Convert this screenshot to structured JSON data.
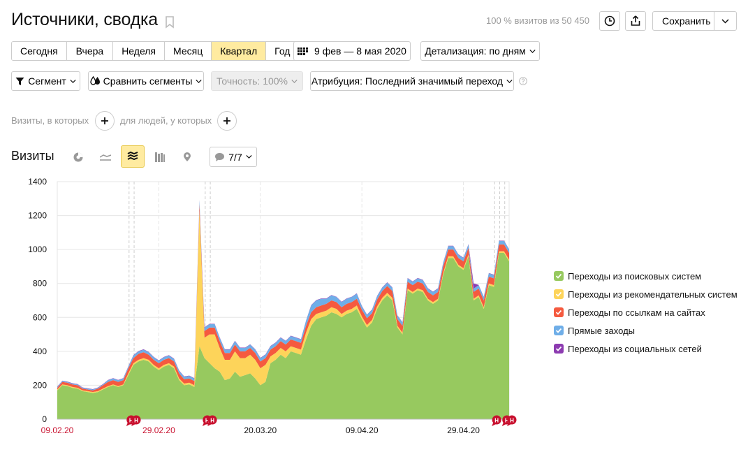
{
  "header": {
    "title": "Источники, сводка",
    "visits_info": "100 % визитов из 50 450",
    "save_label": "Сохранить"
  },
  "period": {
    "items": [
      "Сегодня",
      "Вчера",
      "Неделя",
      "Месяц",
      "Квартал",
      "Год"
    ],
    "active_index": 4,
    "date_range": "9 фев — 8 мая 2020",
    "detail_label": "Детализация: по дням"
  },
  "filters": {
    "segment_label": "Сегмент",
    "compare_label": "Сравнить сегменты",
    "accuracy_label": "Точность: 100%",
    "attribution_label": "Атрибуция: Последний значимый переход",
    "visits_hint": "Визиты, в которых",
    "people_hint": "для людей, у которых"
  },
  "chart_section": {
    "title": "Визиты",
    "series_selector": "7/7",
    "active_chart_type": "stacked-area"
  },
  "colors": {
    "search": "#97c95f",
    "recommend": "#fdd45a",
    "links": "#f55a3f",
    "direct": "#6faee8",
    "social": "#8c3bb0",
    "accent": "#ffeba0"
  },
  "chart_data": {
    "type": "area",
    "stacked": true,
    "x_tick_labels": [
      "09.02.20",
      "29.02.20",
      "20.03.20",
      "09.04.20",
      "29.04.20"
    ],
    "holiday_tick_labels": [
      "09.02.20",
      "29.02.20"
    ],
    "ylim": [
      0,
      1400
    ],
    "y_ticks": [
      0,
      200,
      400,
      600,
      800,
      1000,
      1200,
      1400
    ],
    "event_markers": [
      "Н",
      "Н",
      "Н",
      "Н",
      "Н"
    ],
    "x_start": "2020-02-09",
    "series": [
      {
        "name": "Переходы из поисковых систем",
        "color_key": "search",
        "values": [
          170,
          200,
          195,
          185,
          180,
          165,
          160,
          155,
          160,
          175,
          190,
          200,
          190,
          200,
          260,
          320,
          340,
          350,
          340,
          310,
          290,
          310,
          320,
          300,
          230,
          200,
          205,
          190,
          430,
          360,
          330,
          300,
          280,
          230,
          240,
          280,
          250,
          260,
          270,
          240,
          200,
          220,
          330,
          350,
          380,
          360,
          400,
          390,
          380,
          470,
          550,
          590,
          600,
          610,
          630,
          620,
          600,
          620,
          630,
          650,
          590,
          540,
          570,
          650,
          700,
          730,
          700,
          540,
          500,
          760,
          740,
          760,
          750,
          700,
          680,
          700,
          850,
          950,
          950,
          900,
          880,
          960,
          700,
          720,
          650,
          790,
          780,
          980,
          980,
          930
        ]
      },
      {
        "name": "Переходы из рекомендательных систем",
        "color_key": "recommend",
        "values": [
          5,
          5,
          5,
          5,
          5,
          5,
          5,
          5,
          5,
          5,
          5,
          5,
          5,
          5,
          10,
          10,
          10,
          10,
          10,
          10,
          10,
          10,
          10,
          10,
          10,
          10,
          10,
          10,
          800,
          120,
          170,
          200,
          140,
          120,
          110,
          120,
          110,
          100,
          110,
          110,
          100,
          100,
          40,
          40,
          40,
          40,
          30,
          30,
          30,
          40,
          40,
          30,
          30,
          30,
          30,
          30,
          20,
          20,
          20,
          20,
          15,
          15,
          15,
          15,
          15,
          15,
          15,
          10,
          10,
          10,
          10,
          10,
          10,
          10,
          10,
          10,
          10,
          10,
          10,
          10,
          10,
          10,
          10,
          10,
          10,
          10,
          10,
          10,
          10,
          10
        ]
      },
      {
        "name": "Переходы по ссылкам на сайтах",
        "color_key": "links",
        "values": [
          10,
          15,
          15,
          15,
          15,
          10,
          10,
          10,
          15,
          20,
          25,
          25,
          25,
          25,
          30,
          30,
          35,
          35,
          30,
          30,
          30,
          30,
          30,
          30,
          30,
          25,
          25,
          25,
          40,
          40,
          40,
          40,
          40,
          40,
          40,
          40,
          40,
          40,
          40,
          40,
          40,
          40,
          40,
          40,
          40,
          40,
          40,
          40,
          40,
          40,
          40,
          40,
          40,
          40,
          40,
          40,
          40,
          40,
          40,
          40,
          40,
          40,
          40,
          40,
          40,
          40,
          40,
          40,
          40,
          40,
          40,
          40,
          40,
          40,
          40,
          40,
          40,
          40,
          40,
          40,
          40,
          40,
          40,
          40,
          40,
          40,
          40,
          40,
          40,
          40
        ]
      },
      {
        "name": "Прямые заходы",
        "color_key": "direct",
        "values": [
          5,
          5,
          5,
          5,
          5,
          5,
          5,
          5,
          5,
          5,
          10,
          10,
          10,
          10,
          10,
          15,
          15,
          15,
          15,
          15,
          15,
          15,
          15,
          15,
          15,
          15,
          15,
          15,
          20,
          20,
          20,
          20,
          20,
          20,
          20,
          20,
          20,
          20,
          20,
          20,
          20,
          20,
          20,
          20,
          20,
          20,
          20,
          20,
          20,
          30,
          40,
          40,
          40,
          30,
          30,
          30,
          30,
          30,
          30,
          30,
          20,
          20,
          20,
          20,
          20,
          20,
          20,
          20,
          20,
          20,
          20,
          20,
          20,
          20,
          20,
          20,
          20,
          20,
          20,
          20,
          20,
          20,
          20,
          20,
          20,
          20,
          20,
          20,
          20,
          20
        ]
      },
      {
        "name": "Переходы из социальных сетей",
        "color_key": "social",
        "values": [
          2,
          2,
          2,
          2,
          2,
          2,
          2,
          2,
          2,
          2,
          2,
          2,
          2,
          2,
          2,
          2,
          2,
          2,
          2,
          2,
          2,
          2,
          2,
          2,
          2,
          2,
          2,
          2,
          2,
          2,
          2,
          2,
          2,
          2,
          2,
          2,
          2,
          2,
          2,
          2,
          2,
          2,
          2,
          2,
          2,
          2,
          2,
          2,
          2,
          2,
          2,
          2,
          2,
          2,
          2,
          2,
          2,
          2,
          2,
          2,
          2,
          2,
          2,
          2,
          2,
          2,
          2,
          2,
          2,
          2,
          2,
          2,
          2,
          2,
          2,
          2,
          2,
          2,
          2,
          2,
          2,
          2,
          30,
          2,
          2,
          2,
          2,
          2,
          2,
          2
        ]
      }
    ]
  }
}
